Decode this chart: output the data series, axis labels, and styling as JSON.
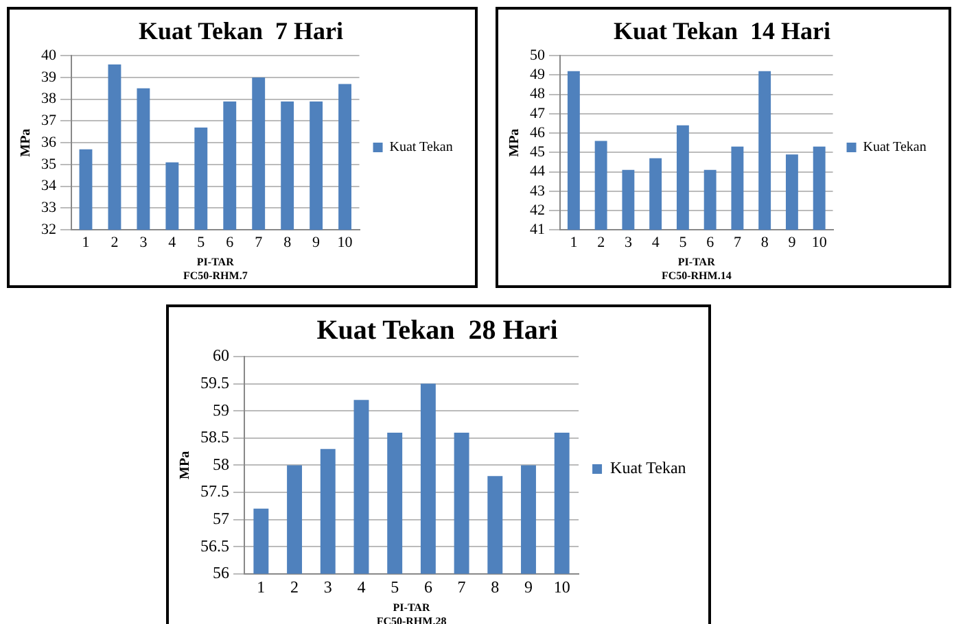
{
  "chart_data": [
    {
      "type": "bar",
      "title": "Kuat Tekan  7 Hari",
      "xlabel": "PI-TAR\nFC50-RHM.7",
      "ylabel": "MPa",
      "categories": [
        "1",
        "2",
        "3",
        "4",
        "5",
        "6",
        "7",
        "8",
        "9",
        "10"
      ],
      "series": [
        {
          "name": "Kuat Tekan",
          "color": "#4f81bd",
          "values": [
            35.7,
            39.6,
            38.5,
            35.1,
            36.7,
            37.9,
            39.0,
            37.9,
            37.9,
            38.7
          ]
        }
      ],
      "ylim": [
        32,
        40
      ],
      "yticks": [
        32,
        33,
        34,
        35,
        36,
        37,
        38,
        39,
        40
      ],
      "grid": "y",
      "legend": "right"
    },
    {
      "type": "bar",
      "title": "Kuat Tekan  14 Hari",
      "xlabel": "PI-TAR\nFC50-RHM.14",
      "ylabel": "MPa",
      "categories": [
        "1",
        "2",
        "3",
        "4",
        "5",
        "6",
        "7",
        "8",
        "9",
        "10"
      ],
      "series": [
        {
          "name": "Kuat Tekan",
          "color": "#4f81bd",
          "values": [
            49.2,
            45.6,
            44.1,
            44.7,
            46.4,
            44.1,
            45.3,
            49.2,
            44.9,
            45.3
          ]
        }
      ],
      "ylim": [
        41,
        50
      ],
      "yticks": [
        41,
        42,
        43,
        44,
        45,
        46,
        47,
        48,
        49,
        50
      ],
      "grid": "y",
      "legend": "right"
    },
    {
      "type": "bar",
      "title": "Kuat Tekan  28 Hari",
      "xlabel": "PI-TAR\nFC50-RHM.28",
      "ylabel": "MPa",
      "categories": [
        "1",
        "2",
        "3",
        "4",
        "5",
        "6",
        "7",
        "8",
        "9",
        "10"
      ],
      "series": [
        {
          "name": "Kuat Tekan",
          "color": "#4f81bd",
          "values": [
            57.2,
            58.0,
            58.3,
            59.2,
            58.6,
            59.5,
            58.6,
            57.8,
            58.0,
            58.6
          ]
        }
      ],
      "ylim": [
        56,
        60
      ],
      "yticks": [
        56,
        56.5,
        57,
        57.5,
        58,
        58.5,
        59,
        59.5,
        60
      ],
      "grid": "y",
      "legend": "right"
    }
  ]
}
